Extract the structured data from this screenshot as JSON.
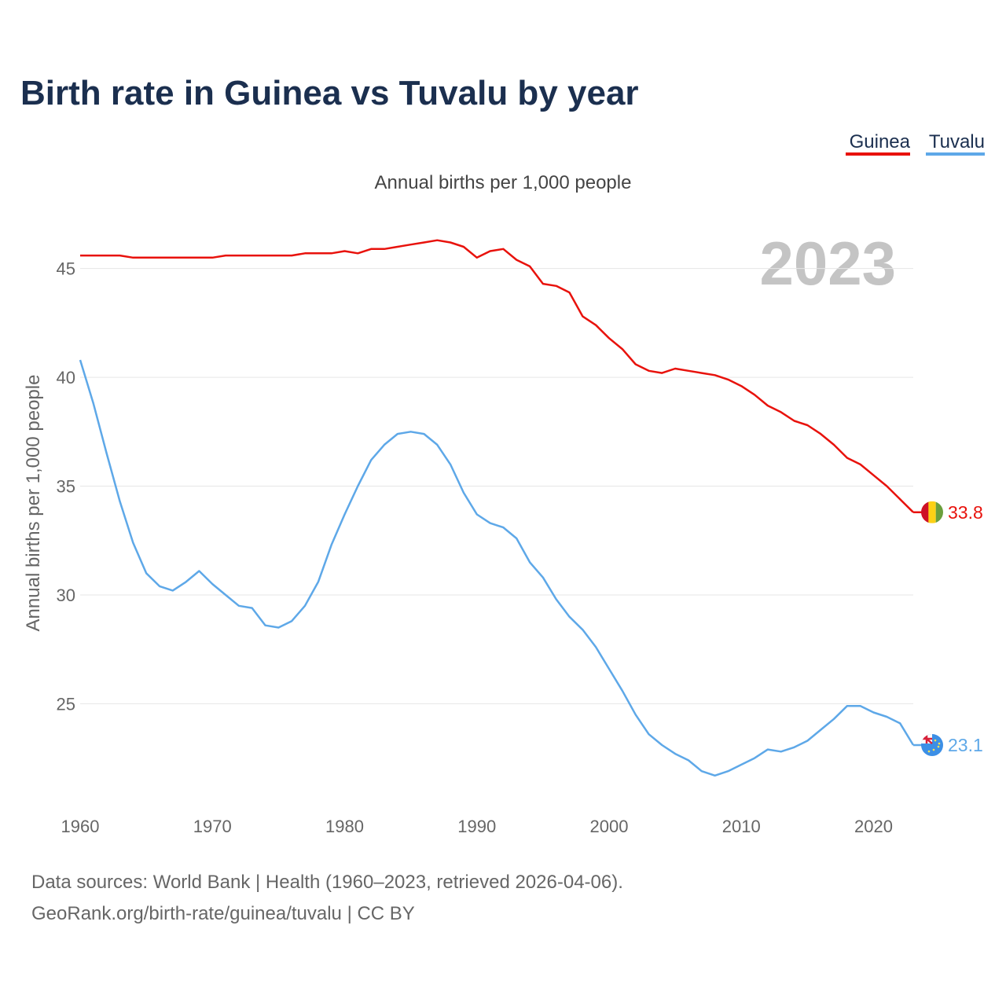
{
  "chart_data": {
    "type": "line",
    "title": "Birth rate in Guinea vs Tuvalu by year",
    "subtitle": "Annual births per 1,000 people",
    "ylabel": "Annual births per 1,000 people",
    "xlabel": "",
    "year_label": "2023",
    "xlim": [
      1960,
      2023
    ],
    "ylim": [
      20.5,
      47.3
    ],
    "x_ticks": [
      1960,
      1970,
      1980,
      1990,
      2000,
      2010,
      2020
    ],
    "y_ticks": [
      25,
      30,
      35,
      40,
      45
    ],
    "grid": true,
    "legend_position": "top-right",
    "x": [
      1960,
      1961,
      1962,
      1963,
      1964,
      1965,
      1966,
      1967,
      1968,
      1969,
      1970,
      1971,
      1972,
      1973,
      1974,
      1975,
      1976,
      1977,
      1978,
      1979,
      1980,
      1981,
      1982,
      1983,
      1984,
      1985,
      1986,
      1987,
      1988,
      1989,
      1990,
      1991,
      1992,
      1993,
      1994,
      1995,
      1996,
      1997,
      1998,
      1999,
      2000,
      2001,
      2002,
      2003,
      2004,
      2005,
      2006,
      2007,
      2008,
      2009,
      2010,
      2011,
      2012,
      2013,
      2014,
      2015,
      2016,
      2017,
      2018,
      2019,
      2020,
      2021,
      2022,
      2023
    ],
    "series": [
      {
        "name": "Guinea",
        "color": "#e8120c",
        "end_label": "33.8",
        "values": [
          45.6,
          45.6,
          45.6,
          45.6,
          45.5,
          45.5,
          45.5,
          45.5,
          45.5,
          45.5,
          45.5,
          45.6,
          45.6,
          45.6,
          45.6,
          45.6,
          45.6,
          45.7,
          45.7,
          45.7,
          45.8,
          45.7,
          45.9,
          45.9,
          46.0,
          46.1,
          46.2,
          46.3,
          46.2,
          46.0,
          45.5,
          45.8,
          45.9,
          45.4,
          45.1,
          44.3,
          44.2,
          43.9,
          42.8,
          42.4,
          41.8,
          41.3,
          40.6,
          40.3,
          40.2,
          40.4,
          40.3,
          40.2,
          40.1,
          39.9,
          39.6,
          39.2,
          38.7,
          38.4,
          38.0,
          37.8,
          37.4,
          36.9,
          36.3,
          36.0,
          35.5,
          35.0,
          34.4,
          33.8
        ]
      },
      {
        "name": "Tuvalu",
        "color": "#5ea8e8",
        "end_label": "23.1",
        "values": [
          40.8,
          38.8,
          36.5,
          34.3,
          32.4,
          31.0,
          30.4,
          30.2,
          30.6,
          31.1,
          30.5,
          30.0,
          29.5,
          29.4,
          28.6,
          28.5,
          28.8,
          29.5,
          30.6,
          32.3,
          33.7,
          35.0,
          36.2,
          36.9,
          37.4,
          37.5,
          37.4,
          36.9,
          36.0,
          34.7,
          33.7,
          33.3,
          33.1,
          32.6,
          31.5,
          30.8,
          29.8,
          29.0,
          28.4,
          27.6,
          26.6,
          25.6,
          24.5,
          23.6,
          23.1,
          22.7,
          22.4,
          21.9,
          21.7,
          21.9,
          22.2,
          22.5,
          22.9,
          22.8,
          23.0,
          23.3,
          23.8,
          24.3,
          24.9,
          24.9,
          24.6,
          24.4,
          24.1,
          23.1
        ]
      }
    ]
  },
  "footer": {
    "line1": "Data sources: World Bank | Health (1960–2023, retrieved 2026-04-06).",
    "line2": "GeoRank.org/birth-rate/guinea/tuvalu | CC BY"
  }
}
